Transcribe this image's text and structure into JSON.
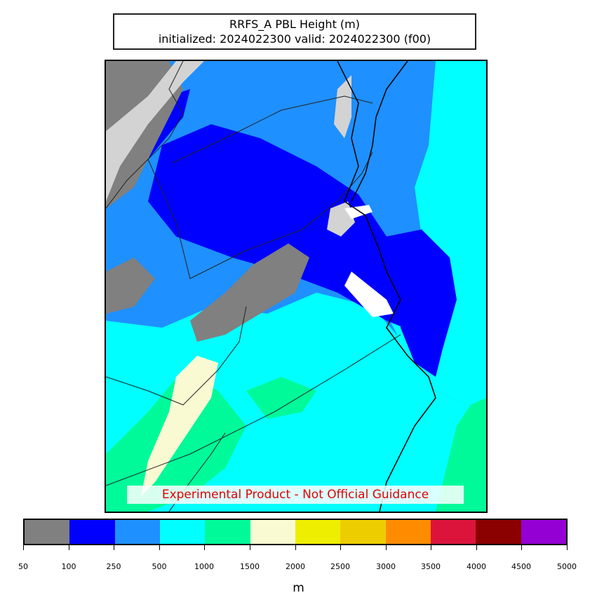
{
  "title": {
    "line1": "RRFS_A PBL Height (m)",
    "line2": "initialized: 2024022300 valid: 2024022300 (f00)"
  },
  "disclaimer": "Experimental Product - Not Official Guidance",
  "colorbar": {
    "unit": "m",
    "ticks": [
      "50",
      "100",
      "250",
      "500",
      "1000",
      "1500",
      "2000",
      "2500",
      "3000",
      "3500",
      "4000",
      "4500",
      "5000"
    ],
    "colors": [
      "#808080",
      "#0000ff",
      "#1e90ff",
      "#00ffff",
      "#00fa9a",
      "#fafad2",
      "#eeee00",
      "#eecd00",
      "#ff8c00",
      "#dc143c",
      "#8b0000",
      "#9400d3"
    ]
  },
  "map_colors": {
    "no_data": "#d3d3d3",
    "band_50_100": "#808080",
    "band_100_250": "#0000ff",
    "band_250_500": "#1e90ff",
    "band_500_1000": "#00ffff",
    "band_1000_1500": "#00fa9a",
    "band_1500_2000": "#fafad2",
    "band_2000_2500": "#eeee00"
  }
}
